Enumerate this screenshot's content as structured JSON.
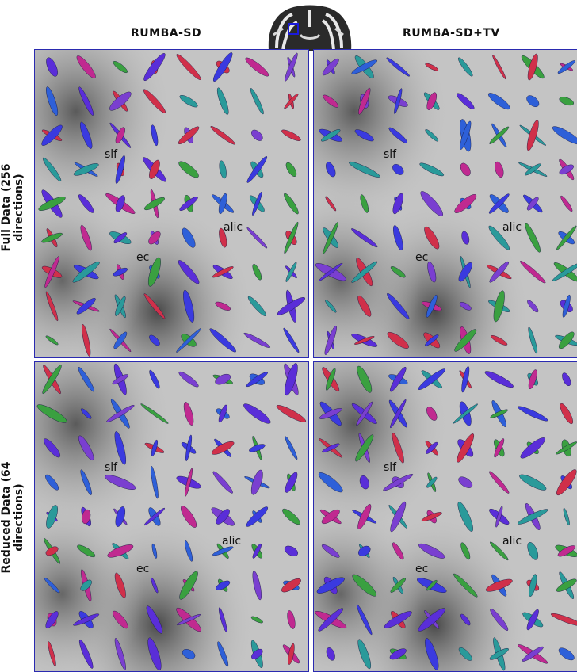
{
  "figure": {
    "column_titles": [
      "RUMBA-SD",
      "RUMBA-SD+TV"
    ],
    "row_titles": [
      "Full Data (256 directions)",
      "Reduced Data (64 directions)"
    ],
    "region_labels": [
      "slf",
      "alic",
      "ec"
    ]
  }
}
